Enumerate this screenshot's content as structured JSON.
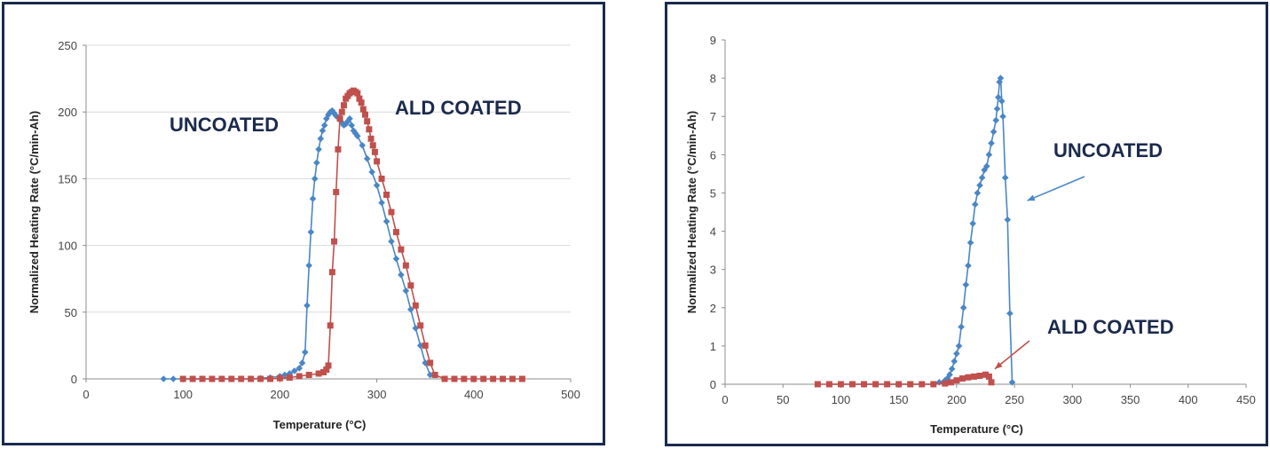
{
  "colors": {
    "uncoated": "#4a86c5",
    "coated": "#c0504d",
    "border": "#1a2a4f",
    "annotation": "#1b2a4d"
  },
  "chart_data": [
    {
      "type": "scatter",
      "title": "",
      "xlabel": "Temperature (°C)",
      "ylabel": "Normalized Heating Rate (°C/min-Ah)",
      "xlim": [
        0,
        500
      ],
      "ylim": [
        0,
        250
      ],
      "xticks": [
        0,
        100,
        200,
        300,
        400,
        500
      ],
      "yticks": [
        0,
        50,
        100,
        150,
        200,
        250
      ],
      "grid": "horizontal",
      "legend": "none",
      "annotations": [
        {
          "text": "UNCOATED",
          "x": 170,
          "y": 188
        },
        {
          "text": "ALD COATED",
          "x": 320,
          "y": 200
        }
      ],
      "series": [
        {
          "name": "UNCOATED",
          "marker": "diamond",
          "x": [
            80,
            90,
            100,
            110,
            120,
            130,
            140,
            150,
            160,
            170,
            180,
            190,
            200,
            205,
            210,
            215,
            220,
            223,
            226,
            228,
            230,
            232,
            234,
            236,
            238,
            240,
            242,
            244,
            246,
            248,
            250,
            252,
            254,
            256,
            258,
            260,
            262,
            264,
            266,
            268,
            270,
            272,
            274,
            276,
            278,
            280,
            285,
            290,
            295,
            300,
            305,
            310,
            315,
            320,
            325,
            330,
            335,
            340,
            345,
            350,
            355
          ],
          "y": [
            0,
            0,
            0,
            0,
            0,
            0,
            0,
            0,
            0,
            0,
            0.5,
            1,
            2,
            3,
            4,
            6,
            8,
            12,
            20,
            55,
            85,
            110,
            135,
            150,
            162,
            172,
            180,
            186,
            190,
            195,
            198,
            200,
            201,
            199,
            197,
            196,
            194,
            192,
            190,
            191,
            193,
            195,
            190,
            186,
            184,
            182,
            175,
            165,
            155,
            145,
            132,
            118,
            103,
            90,
            78,
            66,
            52,
            38,
            25,
            12,
            3
          ]
        },
        {
          "name": "ALD COATED",
          "marker": "square",
          "x": [
            100,
            110,
            120,
            130,
            140,
            150,
            160,
            170,
            180,
            190,
            200,
            210,
            220,
            230,
            240,
            245,
            248,
            250,
            252,
            254,
            256,
            258,
            260,
            262,
            264,
            266,
            268,
            270,
            272,
            274,
            276,
            278,
            280,
            282,
            284,
            286,
            288,
            290,
            292,
            294,
            296,
            298,
            300,
            305,
            310,
            315,
            320,
            325,
            330,
            335,
            340,
            345,
            350,
            355,
            360,
            370,
            380,
            390,
            400,
            410,
            420,
            430,
            440,
            450
          ],
          "y": [
            0,
            0,
            0,
            0,
            0,
            0,
            0,
            0,
            0,
            0,
            0.5,
            1,
            2,
            3,
            4,
            5,
            7,
            10,
            40,
            80,
            103,
            140,
            172,
            195,
            200,
            205,
            210,
            212,
            214,
            215,
            216,
            215,
            214,
            210,
            207,
            202,
            198,
            193,
            187,
            180,
            175,
            170,
            163,
            150,
            138,
            125,
            110,
            97,
            85,
            70,
            55,
            40,
            25,
            12,
            3,
            0,
            0,
            0,
            0,
            0,
            0,
            0,
            0,
            0
          ]
        }
      ]
    },
    {
      "type": "scatter",
      "title": "",
      "xlabel": "Temperature (°C)",
      "ylabel": "Normalized Heating Rate (°C/min-Ah)",
      "xlim": [
        0,
        450
      ],
      "ylim": [
        0,
        9
      ],
      "xticks": [
        0,
        50,
        100,
        150,
        200,
        250,
        300,
        350,
        400,
        450
      ],
      "yticks": [
        0,
        1,
        2,
        3,
        4,
        5,
        6,
        7,
        8,
        9
      ],
      "grid": "none",
      "legend": "none",
      "annotations": [
        {
          "text": "UNCOATED",
          "x": 288,
          "y": 6.2,
          "arrow_to": [
            261,
            4.8
          ]
        },
        {
          "text": "ALD COATED",
          "x": 284,
          "y": 1.5,
          "arrow_to": [
            233,
            0.4
          ]
        }
      ],
      "series": [
        {
          "name": "UNCOATED",
          "marker": "diamond",
          "x": [
            90,
            100,
            110,
            120,
            130,
            140,
            150,
            160,
            170,
            180,
            185,
            190,
            192,
            194,
            196,
            198,
            200,
            202,
            204,
            206,
            208,
            210,
            212,
            214,
            216,
            218,
            220,
            222,
            224,
            226,
            228,
            230,
            232,
            234,
            235,
            236,
            237,
            238,
            239,
            240,
            242,
            244,
            246,
            248
          ],
          "y": [
            0,
            0,
            0,
            0,
            0,
            0,
            0,
            0,
            0,
            0,
            0.05,
            0.1,
            0.15,
            0.25,
            0.4,
            0.6,
            0.8,
            1.0,
            1.5,
            2.0,
            2.6,
            3.1,
            3.7,
            4.2,
            4.7,
            5.0,
            5.2,
            5.4,
            5.6,
            5.7,
            6.0,
            6.3,
            6.6,
            6.9,
            7.2,
            7.5,
            7.9,
            8.0,
            7.4,
            7.0,
            5.4,
            4.3,
            1.85,
            0.05
          ]
        },
        {
          "name": "ALD COATED",
          "marker": "square",
          "x": [
            80,
            90,
            100,
            110,
            120,
            130,
            140,
            150,
            160,
            170,
            180,
            190,
            195,
            200,
            205,
            210,
            215,
            220,
            225,
            228,
            230
          ],
          "y": [
            0,
            0,
            0,
            0,
            0,
            0,
            0,
            0,
            0,
            0,
            0,
            0.02,
            0.05,
            0.1,
            0.15,
            0.18,
            0.2,
            0.22,
            0.25,
            0.2,
            0.05
          ]
        }
      ]
    }
  ]
}
